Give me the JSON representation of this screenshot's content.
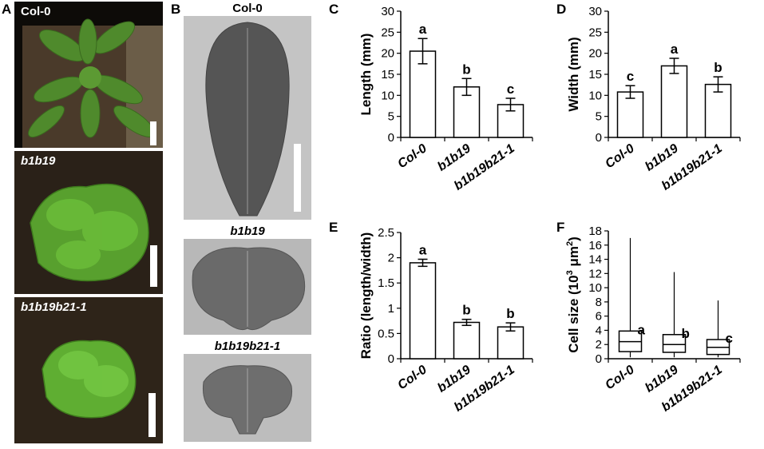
{
  "panels": {
    "A": {
      "letter": "A",
      "photos": [
        {
          "label": "Col-0",
          "italic": false
        },
        {
          "label": "b1b19",
          "italic": true
        },
        {
          "label": "b1b19b21-1",
          "italic": true
        }
      ]
    },
    "B": {
      "letter": "B",
      "leaves": [
        {
          "label": "Col-0",
          "italic": false
        },
        {
          "label": "b1b19",
          "italic": true
        },
        {
          "label": "b1b19b21-1",
          "italic": true
        }
      ]
    }
  },
  "chart_data": [
    {
      "panel": "C",
      "type": "bar",
      "categories": [
        "Col-0",
        "b1b19",
        "b1b19b21-1"
      ],
      "values": [
        20.5,
        12.0,
        7.8
      ],
      "errors": [
        3.0,
        2.0,
        1.5
      ],
      "letters": [
        "a",
        "b",
        "c"
      ],
      "ylabel": "Length (mm)",
      "ylim": [
        0,
        30
      ],
      "yticks": [
        "0",
        "5",
        "10",
        "15",
        "20",
        "25",
        "30"
      ],
      "grid": false
    },
    {
      "panel": "D",
      "type": "bar",
      "categories": [
        "Col-0",
        "b1b19",
        "b1b19b21-1"
      ],
      "values": [
        10.8,
        17.0,
        12.6
      ],
      "errors": [
        1.5,
        1.8,
        1.8
      ],
      "letters": [
        "c",
        "a",
        "b"
      ],
      "ylabel": "Width (mm)",
      "ylim": [
        0,
        30
      ],
      "yticks": [
        "0",
        "5",
        "10",
        "15",
        "20",
        "25",
        "30"
      ],
      "grid": false
    },
    {
      "panel": "E",
      "type": "bar",
      "categories": [
        "Col-0",
        "b1b19",
        "b1b19b21-1"
      ],
      "values": [
        1.9,
        0.72,
        0.63
      ],
      "errors": [
        0.07,
        0.06,
        0.08
      ],
      "letters": [
        "a",
        "b",
        "b"
      ],
      "ylabel": "Ratio (length/width)",
      "ylim": [
        0,
        2.5
      ],
      "yticks": [
        "0",
        "0.5",
        "1",
        "1.5",
        "2",
        "2.5"
      ],
      "grid": false
    },
    {
      "panel": "F",
      "type": "box",
      "categories": [
        "Col-0",
        "b1b19",
        "b1b19b21-1"
      ],
      "boxes": [
        {
          "min": 0.2,
          "q1": 1.0,
          "median": 2.4,
          "q3": 3.9,
          "max": 17.0
        },
        {
          "min": 0.2,
          "q1": 0.9,
          "median": 2.0,
          "q3": 3.4,
          "max": 12.2
        },
        {
          "min": 0.2,
          "q1": 0.6,
          "median": 1.6,
          "q3": 2.7,
          "max": 8.2
        }
      ],
      "letters": [
        "a",
        "b",
        "c"
      ],
      "ylabel_pre": "Cell size (10",
      "ylabel_sup1": "3",
      "ylabel_mid": " μm",
      "ylabel_sup2": "2",
      "ylabel_post": ")",
      "ylim": [
        0,
        18
      ],
      "yticks": [
        "0",
        "2",
        "4",
        "6",
        "8",
        "10",
        "12",
        "14",
        "16",
        "18"
      ],
      "grid": false
    }
  ]
}
